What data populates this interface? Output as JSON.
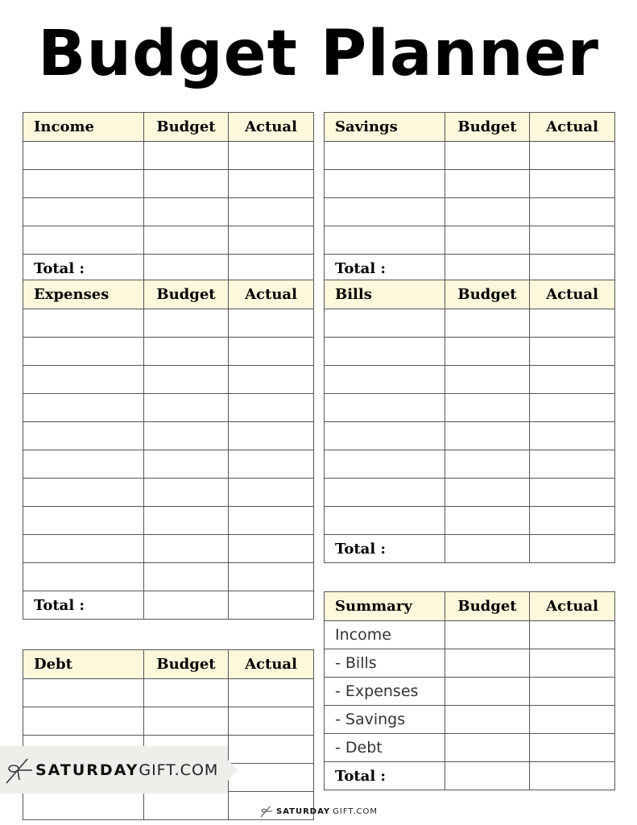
{
  "title": "Budget Planner",
  "header_color": "#fdf8dc",
  "tables": [
    {
      "id": "income",
      "title": "Income",
      "columns": [
        "Budget",
        "Actual"
      ],
      "rows": [
        "",
        "",
        "",
        ""
      ],
      "total": "Total :"
    },
    {
      "id": "savings",
      "title": "Savings",
      "columns": [
        "Budget",
        "Actual"
      ],
      "rows": [
        "",
        "",
        "",
        ""
      ],
      "total": "Total :"
    },
    {
      "id": "expenses",
      "title": "Expenses",
      "columns": [
        "Budget",
        "Actual"
      ],
      "rows": [
        "",
        "",
        "",
        "",
        "",
        "",
        "",
        "",
        "",
        ""
      ],
      "total": "Total :"
    },
    {
      "id": "bills",
      "title": "Bills",
      "columns": [
        "Budget",
        "Actual"
      ],
      "rows": [
        "",
        "",
        "",
        "",
        "",
        "",
        "",
        ""
      ],
      "total": "Total :"
    },
    {
      "id": "debt",
      "title": "Debt",
      "columns": [
        "Budget",
        "Actual"
      ],
      "rows": [
        "",
        "",
        "",
        ""
      ],
      "total": ""
    },
    {
      "id": "summary",
      "title": "Summary",
      "columns": [
        "Budget",
        "Actual"
      ],
      "rows": [
        "Income",
        " - Bills",
        " - Expenses",
        " - Savings",
        " - Debt"
      ],
      "total": "Total :"
    }
  ],
  "logo": {
    "bold": "SATURDAY",
    "light": "GIFT.COM",
    "icon": "gift-bow-icon"
  },
  "footer": {
    "bold": "SATURDAY",
    "light": "GIFT.COM",
    "icon": "gift-bow-icon"
  }
}
